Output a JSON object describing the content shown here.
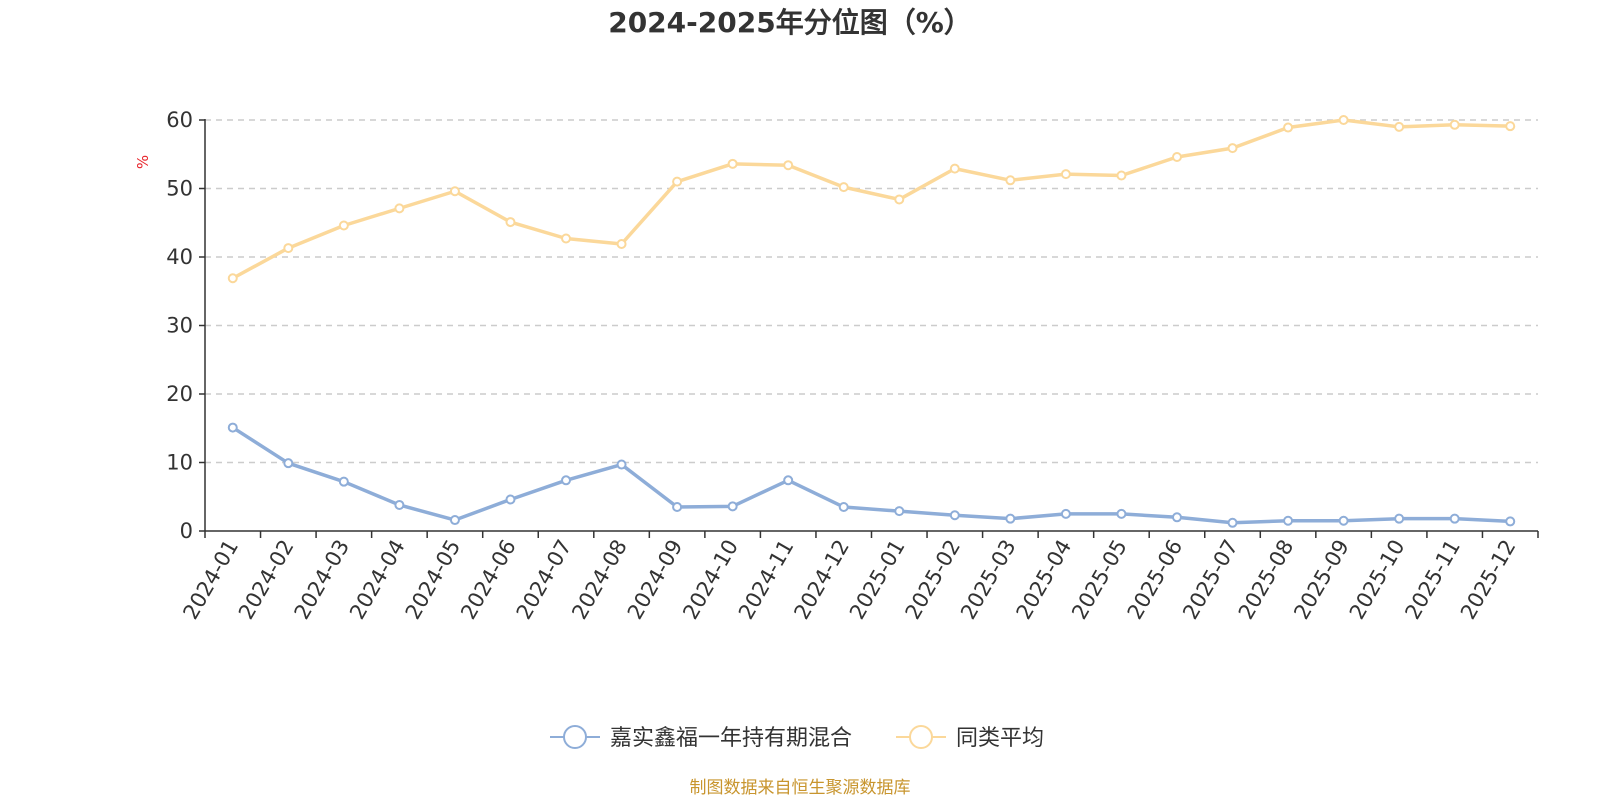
{
  "chart_data": {
    "type": "line",
    "title": "2024-2025年分位图（%）",
    "ylabel": "%",
    "ylim": [
      0,
      60
    ],
    "yticks": [
      0,
      10,
      20,
      30,
      40,
      50,
      60
    ],
    "grid": true,
    "legend_position": "bottom-center",
    "categories": [
      "2024-01",
      "2024-02",
      "2024-03",
      "2024-04",
      "2024-05",
      "2024-06",
      "2024-07",
      "2024-08",
      "2024-09",
      "2024-10",
      "2024-11",
      "2024-12",
      "2025-01",
      "2025-02",
      "2025-03",
      "2025-04",
      "2025-05",
      "2025-06",
      "2025-07",
      "2025-08",
      "2025-09",
      "2025-10",
      "2025-11",
      "2025-12"
    ],
    "series": [
      {
        "name": "嘉实鑫福一年持有期混合",
        "color": "#8eadd8",
        "values": [
          15.1,
          9.9,
          7.2,
          3.8,
          1.6,
          4.6,
          7.4,
          9.7,
          3.5,
          3.6,
          7.4,
          3.5,
          2.9,
          2.3,
          1.8,
          2.5,
          2.5,
          2.0,
          1.2,
          1.5,
          1.5,
          1.8,
          1.8,
          1.4
        ]
      },
      {
        "name": "同类平均",
        "color": "#fbd89a",
        "values": [
          36.9,
          41.3,
          44.6,
          47.1,
          49.6,
          45.1,
          42.7,
          41.9,
          51.0,
          53.6,
          53.4,
          50.2,
          48.4,
          52.9,
          51.2,
          52.1,
          51.9,
          54.6,
          55.9,
          58.9,
          60.0,
          59.0,
          59.3,
          59.1
        ]
      }
    ],
    "source": "制图数据来自恒生聚源数据库",
    "colors": {
      "axis": "#333333",
      "grid": "#cccccc",
      "unit_label": "#e8242b",
      "source_text": "#c8952e"
    }
  }
}
